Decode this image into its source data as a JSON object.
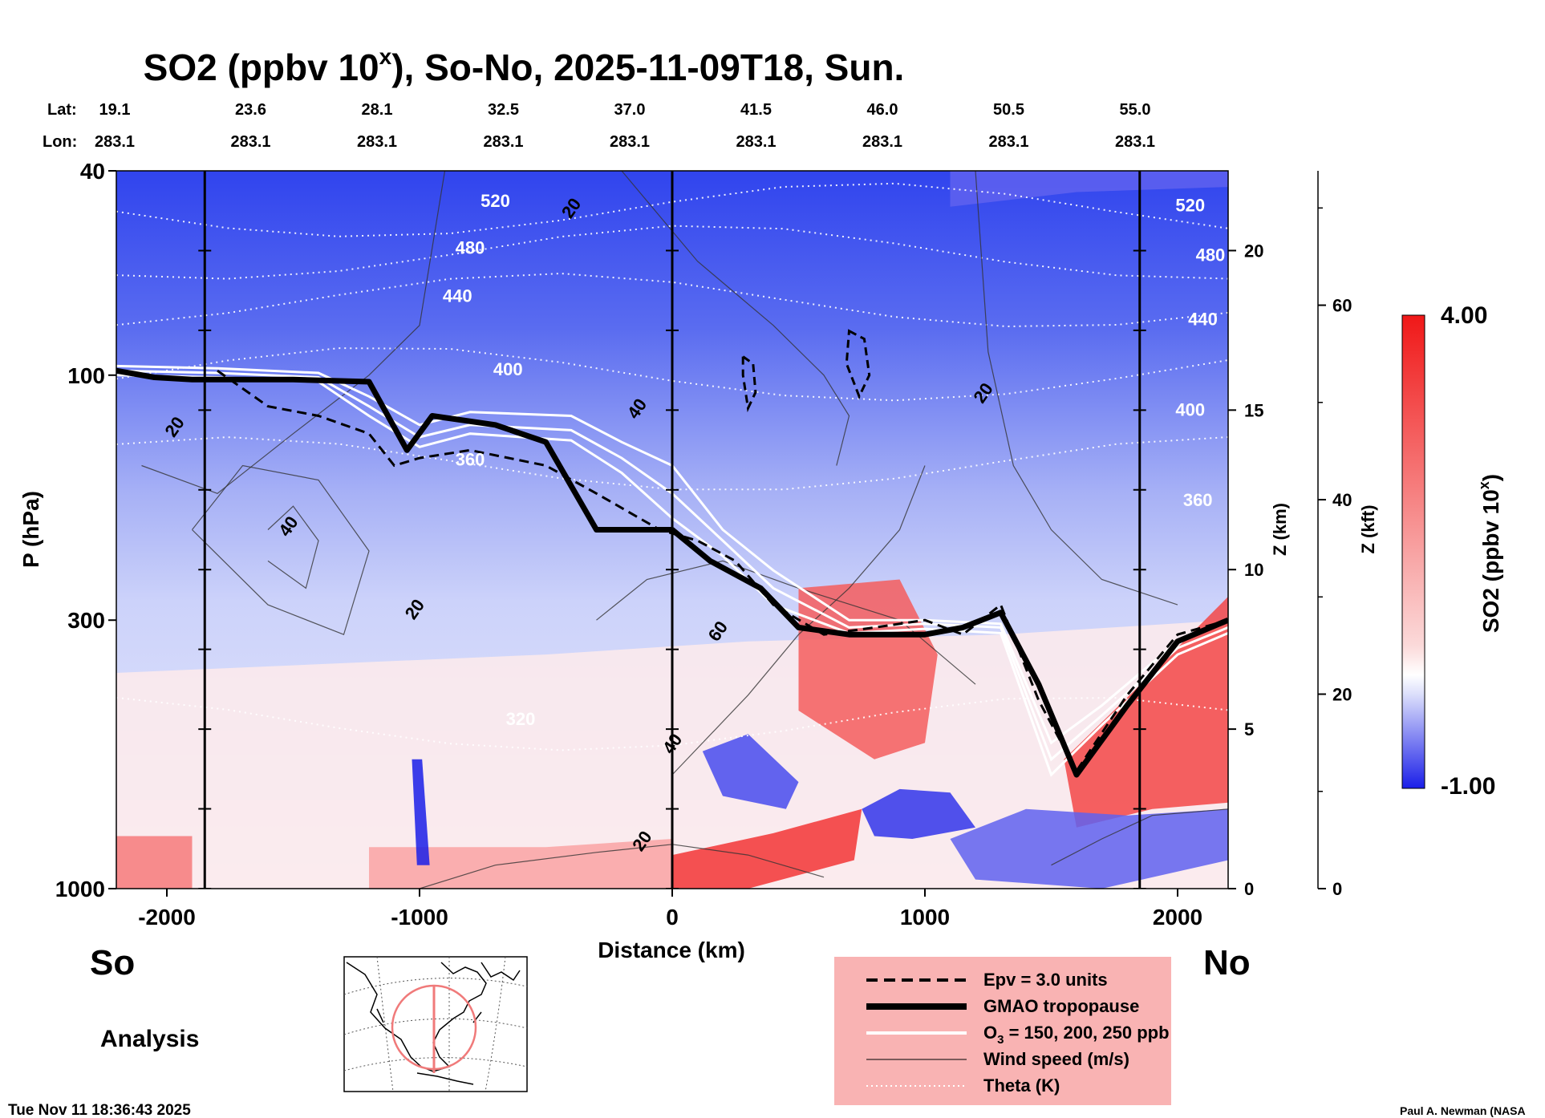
{
  "chart_data": {
    "type": "heatmap",
    "title_main": "SO2 (ppbv 10",
    "title_sup": "x",
    "title_rest": "), So-No, 2025-11-09T18, Sun.",
    "xlabel": "Distance (km)",
    "ylabel": "P (hPa)",
    "z_km_label": "Z (km)",
    "z_kft_label": "Z (kft)",
    "colorbar_label": "SO2 (ppbv 10",
    "colorbar_label_sup": "x",
    "colorbar_label_end": ")",
    "colorbar_max_label": "4.00",
    "colorbar_min_label": "-1.00",
    "colorbar_range": [
      -1.0,
      4.0
    ],
    "xlim": [
      -2200,
      2200
    ],
    "plim": [
      1000,
      40
    ],
    "x_ticks": [
      -2000,
      -1000,
      0,
      1000,
      2000
    ],
    "x_tick_labels": [
      "-2000",
      "-1000",
      "0",
      "1000",
      "2000"
    ],
    "p_ticks": [
      40,
      100,
      300,
      1000
    ],
    "p_tick_labels": [
      "40",
      "100",
      "300",
      "1000"
    ],
    "zkm_ticks": [
      0,
      5,
      10,
      15,
      20
    ],
    "zkm_tick_labels": [
      "0",
      "5",
      "10",
      "15",
      "20"
    ],
    "zkft_ticks": [
      0,
      20,
      40,
      60
    ],
    "zkft_tick_labels": [
      "0",
      "20",
      "40",
      "60"
    ],
    "lat_title": "Lat:",
    "lon_title": "Lon:",
    "lat_labels": [
      "19.1",
      "23.6",
      "28.1",
      "32.5",
      "37.0",
      "41.5",
      "46.0",
      "50.5",
      "55.0"
    ],
    "lon_labels": [
      "283.1",
      "283.1",
      "283.1",
      "283.1",
      "283.1",
      "283.1",
      "283.1",
      "283.1",
      "283.1"
    ],
    "label_positions_km": [
      -2200,
      -1700,
      -1200,
      -700,
      -200,
      300,
      800,
      1300,
      1800
    ],
    "vertical_markers_km": [
      -1850,
      0,
      1850
    ],
    "theta_levels": [
      {
        "value": "520",
        "p": 48
      },
      {
        "value": "480",
        "p": 58
      },
      {
        "value": "440",
        "p": 72
      },
      {
        "value": "400",
        "p": 100
      },
      {
        "value": "360",
        "p": 150
      },
      {
        "value": "320",
        "p": 480
      }
    ],
    "theta_labels": [
      {
        "text": "520",
        "x": -700,
        "p": 47
      },
      {
        "text": "480",
        "x": -800,
        "p": 58
      },
      {
        "text": "440",
        "x": -850,
        "p": 72
      },
      {
        "text": "400",
        "x": -650,
        "p": 100
      },
      {
        "text": "360",
        "x": -800,
        "p": 150
      },
      {
        "text": "320",
        "x": -600,
        "p": 480
      },
      {
        "text": "520",
        "x": 2050,
        "p": 48
      },
      {
        "text": "480",
        "x": 2130,
        "p": 60
      },
      {
        "text": "440",
        "x": 2100,
        "p": 80
      },
      {
        "text": "400",
        "x": 2050,
        "p": 120
      },
      {
        "text": "360",
        "x": 2080,
        "p": 180
      }
    ],
    "wind_labels": [
      {
        "text": "20",
        "x": -380,
        "p": 48
      },
      {
        "text": "20",
        "x": -1950,
        "p": 128
      },
      {
        "text": "40",
        "x": -1500,
        "p": 200
      },
      {
        "text": "20",
        "x": -1000,
        "p": 290
      },
      {
        "text": "40",
        "x": -120,
        "p": 118
      },
      {
        "text": "60",
        "x": 200,
        "p": 320
      },
      {
        "text": "40",
        "x": 20,
        "p": 530
      },
      {
        "text": "20",
        "x": 1250,
        "p": 110
      },
      {
        "text": "20",
        "x": -100,
        "p": 820
      }
    ],
    "tropopause_gmao": {
      "x": [
        -2200,
        -2050,
        -1900,
        -1500,
        -1200,
        -1050,
        -950,
        -700,
        -500,
        -300,
        0,
        150,
        350,
        500,
        700,
        1000,
        1150,
        1300,
        1450,
        1600,
        1800,
        2000,
        2200
      ],
      "p": [
        98,
        101,
        102,
        102,
        103,
        140,
        120,
        125,
        135,
        200,
        200,
        230,
        260,
        310,
        320,
        320,
        310,
        290,
        400,
        600,
        440,
        330,
        300
      ]
    },
    "epv_line": {
      "x": [
        -1800,
        -1600,
        -1400,
        -1200,
        -1100,
        -1000,
        -800,
        -500,
        -300,
        -50,
        100,
        250,
        400,
        600,
        800,
        1000,
        1150,
        1300,
        1450,
        1600,
        1800,
        2000,
        2200
      ],
      "p": [
        98,
        115,
        120,
        130,
        150,
        145,
        140,
        150,
        170,
        200,
        210,
        230,
        280,
        320,
        310,
        300,
        320,
        280,
        430,
        590,
        420,
        320,
        300
      ]
    },
    "o3_lines": [
      {
        "x": [
          -2200,
          -1800,
          -1400,
          -1200,
          -1000,
          -800,
          -400,
          -200,
          0,
          200,
          400,
          700,
          1000,
          1300,
          1500,
          1700,
          2000,
          2200
        ],
        "p": [
          96,
          97,
          99,
          110,
          125,
          118,
          120,
          135,
          150,
          200,
          240,
          300,
          300,
          305,
          520,
          440,
          330,
          300
        ]
      },
      {
        "x": [
          -2200,
          -1800,
          -1400,
          -1200,
          -1000,
          -800,
          -400,
          -200,
          0,
          200,
          400,
          700,
          1000,
          1300,
          1500,
          1700,
          2000,
          2200
        ],
        "p": [
          98,
          99,
          101,
          115,
          132,
          125,
          128,
          145,
          170,
          210,
          260,
          310,
          305,
          310,
          560,
          460,
          340,
          310
        ]
      },
      {
        "x": [
          -2200,
          -1800,
          -1400,
          -1200,
          -1000,
          -800,
          -400,
          -200,
          0,
          200,
          400,
          700,
          1000,
          1300,
          1500,
          1700,
          2000,
          2200
        ],
        "p": [
          100,
          101,
          103,
          120,
          138,
          130,
          134,
          155,
          190,
          225,
          280,
          318,
          312,
          318,
          600,
          480,
          350,
          318
        ]
      }
    ],
    "epv_blobs": [
      {
        "x": [
          280,
          320,
          330,
          300,
          280
        ],
        "p": [
          92,
          95,
          108,
          116,
          100
        ]
      },
      {
        "x": [
          700,
          760,
          780,
          740,
          690
        ],
        "p": [
          82,
          85,
          100,
          110,
          95
        ]
      }
    ],
    "so2_regions": [
      {
        "level": 0.35,
        "x": [
          -2200,
          -500,
          300,
          1300,
          2200,
          2200,
          -2200
        ],
        "p": [
          380,
          350,
          330,
          320,
          300,
          1000,
          1000
        ]
      },
      {
        "level": 2.8,
        "x": [
          500,
          900,
          1050,
          1000,
          800,
          500
        ],
        "p": [
          260,
          250,
          350,
          520,
          560,
          450
        ]
      },
      {
        "level": 3.2,
        "x": [
          1550,
          1900,
          2200,
          2200,
          1900,
          1600
        ],
        "p": [
          560,
          380,
          270,
          680,
          700,
          760
        ]
      },
      {
        "level": 3.5,
        "x": [
          0,
          400,
          750,
          720,
          300,
          0
        ],
        "p": [
          860,
          780,
          700,
          880,
          1000,
          1000
        ]
      },
      {
        "level": 2.3,
        "x": [
          -2200,
          -1900,
          -1900,
          -2200
        ],
        "p": [
          790,
          790,
          1000,
          1000
        ]
      },
      {
        "level": 1.6,
        "x": [
          -1200,
          -500,
          0,
          0,
          -1200
        ],
        "p": [
          830,
          830,
          800,
          1000,
          1000
        ]
      },
      {
        "level": -0.8,
        "x": [
          120,
          300,
          500,
          450,
          200
        ],
        "p": [
          540,
          500,
          620,
          700,
          660
        ]
      },
      {
        "level": -0.9,
        "x": [
          750,
          900,
          1100,
          1200,
          950,
          800
        ],
        "p": [
          700,
          640,
          650,
          760,
          800,
          790
        ]
      },
      {
        "level": -0.7,
        "x": [
          1100,
          1400,
          1800,
          2200,
          2200,
          1700,
          1200
        ],
        "p": [
          800,
          700,
          720,
          700,
          880,
          1000,
          960
        ]
      },
      {
        "level": -1.0,
        "x": [
          -1030,
          -990,
          -960,
          -1010
        ],
        "p": [
          560,
          560,
          900,
          900
        ]
      },
      {
        "level": -0.7,
        "x": [
          1100,
          1600,
          2200,
          2200,
          1100
        ],
        "p": [
          47,
          44,
          43,
          40,
          40
        ]
      }
    ],
    "legend": [
      {
        "style": "dash",
        "label": "Epv = 3.0 units"
      },
      {
        "style": "thick",
        "label": "GMAO tropopause"
      },
      {
        "style": "white",
        "label_main": "O",
        "label_sub": "3",
        "label_rest": " = 150, 200, 250 ppb"
      },
      {
        "style": "thin",
        "label": "Wind speed (m/s)"
      },
      {
        "style": "dotted",
        "label": "Theta (K)"
      }
    ]
  },
  "labels": {
    "south": "So",
    "north": "No",
    "analysis": "Analysis",
    "timestamp": "Tue Nov 11 18:36:43 2025",
    "credit": "Paul A. Newman (NASA"
  },
  "colors": {
    "blue": "#1a2fe8",
    "red": "#f01818",
    "white": "#ffffff",
    "legend_bg": "#f9b3b3",
    "map_circle": "#f07a7a"
  }
}
